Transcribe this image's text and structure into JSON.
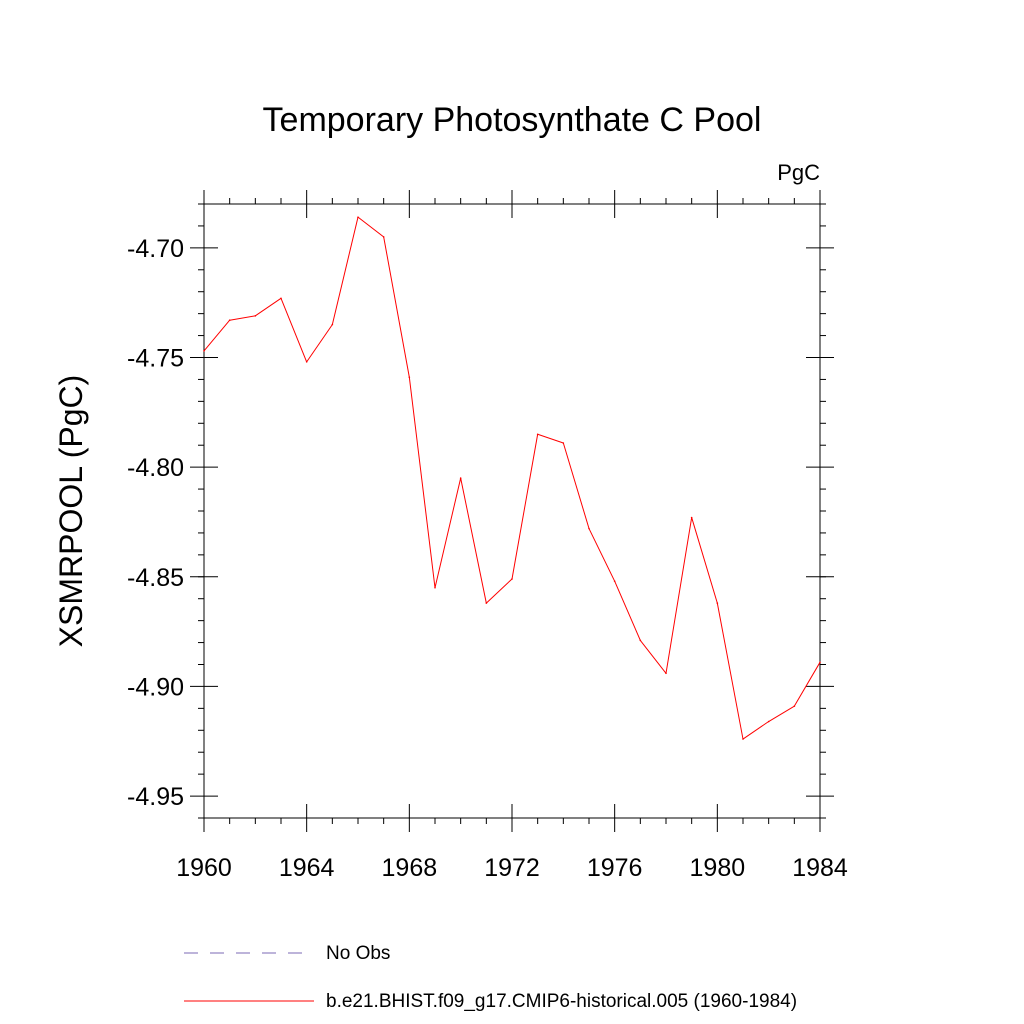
{
  "chart_data": {
    "type": "line",
    "title": "Temporary Photosynthate C Pool",
    "units": "PgC",
    "xlabel": "",
    "ylabel": "XSMRPOOL  (PgC)",
    "xlim": [
      1960,
      1984
    ],
    "ylim": [
      -4.96,
      -4.68
    ],
    "x_ticks": [
      "1960",
      "1964",
      "1968",
      "1972",
      "1976",
      "1980",
      "1984"
    ],
    "y_ticks": [
      "-4.70",
      "-4.75",
      "-4.80",
      "-4.85",
      "-4.90",
      "-4.95"
    ],
    "grid": false,
    "legend_position": "bottom",
    "colors": {
      "series": "#ff0000",
      "obs": "#7b68b6",
      "axis": "#000000"
    },
    "series": [
      {
        "name": "b.e21.BHIST.f09_g17.CMIP6-historical.005 (1960-1984)",
        "style": "solid",
        "x": [
          1960,
          1961,
          1962,
          1963,
          1964,
          1965,
          1966,
          1967,
          1968,
          1969,
          1970,
          1971,
          1972,
          1973,
          1974,
          1975,
          1976,
          1977,
          1978,
          1979,
          1980,
          1981,
          1982,
          1983,
          1984
        ],
        "values": [
          -4.747,
          -4.733,
          -4.731,
          -4.723,
          -4.752,
          -4.735,
          -4.686,
          -4.695,
          -4.759,
          -4.855,
          -4.805,
          -4.862,
          -4.851,
          -4.785,
          -4.789,
          -4.828,
          -4.852,
          -4.879,
          -4.894,
          -4.823,
          -4.862,
          -4.924,
          -4.916,
          -4.909,
          -4.889
        ]
      }
    ],
    "legend": [
      {
        "label": "No Obs",
        "style": "dashed",
        "color": "#7b68b6"
      },
      {
        "label": "b.e21.BHIST.f09_g17.CMIP6-historical.005 (1960-1984)",
        "style": "solid",
        "color": "#ff0000"
      }
    ]
  }
}
